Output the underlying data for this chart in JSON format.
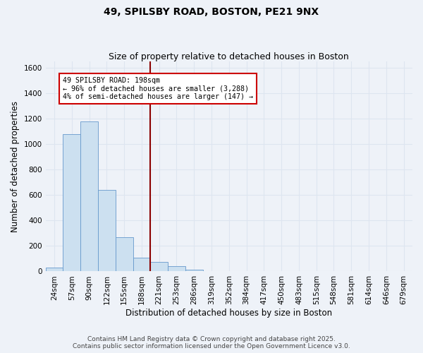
{
  "title": "49, SPILSBY ROAD, BOSTON, PE21 9NX",
  "subtitle": "Size of property relative to detached houses in Boston",
  "xlabel": "Distribution of detached houses by size in Boston",
  "ylabel": "Number of detached properties",
  "footnote1": "Contains HM Land Registry data © Crown copyright and database right 2025.",
  "footnote2": "Contains public sector information licensed under the Open Government Licence v3.0.",
  "categories": [
    "24sqm",
    "57sqm",
    "90sqm",
    "122sqm",
    "155sqm",
    "188sqm",
    "221sqm",
    "253sqm",
    "286sqm",
    "319sqm",
    "352sqm",
    "384sqm",
    "417sqm",
    "450sqm",
    "483sqm",
    "515sqm",
    "548sqm",
    "581sqm",
    "614sqm",
    "646sqm",
    "679sqm"
  ],
  "bar_heights": [
    30,
    1080,
    1180,
    640,
    270,
    110,
    75,
    40,
    15,
    3,
    1,
    0,
    0,
    0,
    0,
    0,
    0,
    0,
    0,
    0,
    0
  ],
  "bar_color": "#cce0f0",
  "bar_edge_color": "#6699cc",
  "red_line_x": 5.5,
  "annotation_text": "49 SPILSBY ROAD: 198sqm\n← 96% of detached houses are smaller (3,288)\n4% of semi-detached houses are larger (147) →",
  "annotation_box_color": "#ffffff",
  "annotation_box_edge": "#cc0000",
  "red_line_color": "#8b0000",
  "ylim": [
    0,
    1650
  ],
  "yticks": [
    0,
    200,
    400,
    600,
    800,
    1000,
    1200,
    1400,
    1600
  ],
  "background_color": "#eef2f8",
  "grid_color": "#dde5f0",
  "title_fontsize": 10,
  "subtitle_fontsize": 9,
  "axis_fontsize": 8.5,
  "tick_fontsize": 7.5,
  "footnote_fontsize": 6.5
}
